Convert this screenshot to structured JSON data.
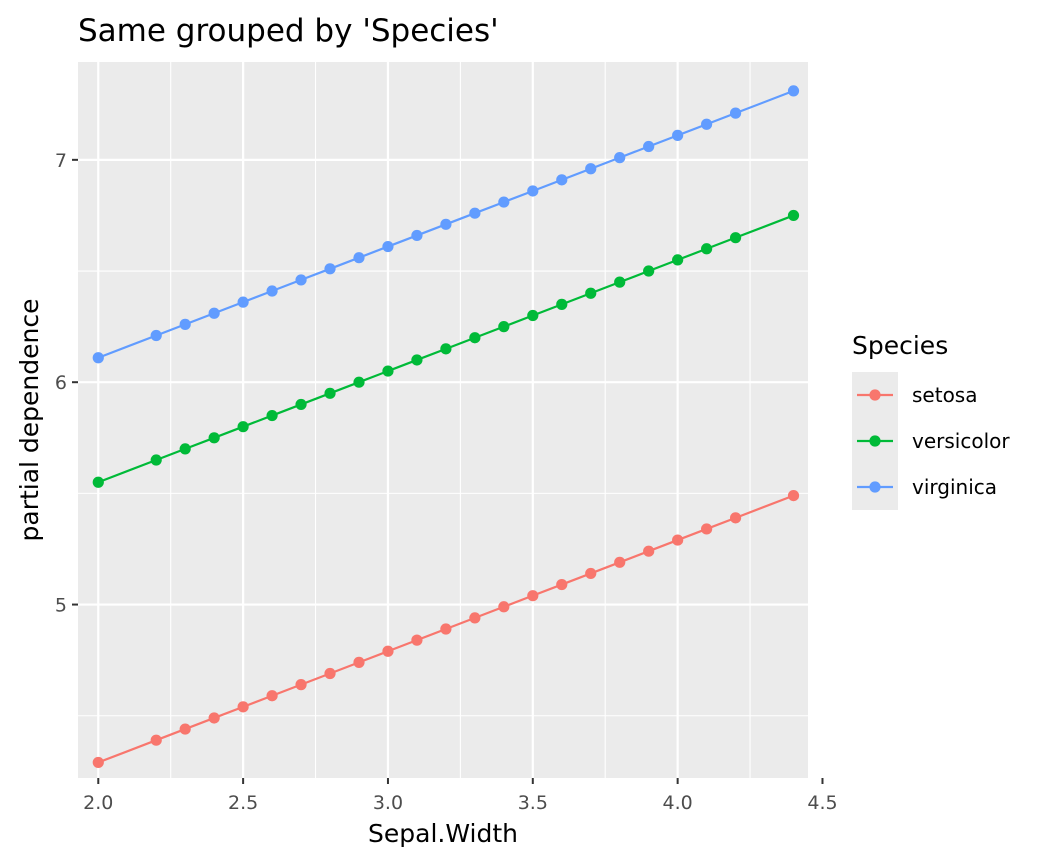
{
  "chart_data": {
    "type": "line",
    "title": "Same grouped by 'Species'",
    "xlabel": "Sepal.Width",
    "ylabel": "partial dependence",
    "xlim": [
      1.93,
      4.45
    ],
    "ylim": [
      4.22,
      7.44
    ],
    "x_ticks": [
      2.0,
      2.5,
      3.0,
      3.5,
      4.0,
      4.5
    ],
    "x_tick_labels": [
      "2.0",
      "2.5",
      "3.0",
      "3.5",
      "4.0",
      "4.5"
    ],
    "y_ticks": [
      5,
      6,
      7
    ],
    "y_tick_labels": [
      "5",
      "6",
      "7"
    ],
    "grid": true,
    "legend": {
      "title": "Species",
      "position": "right"
    },
    "x": [
      2.0,
      2.2,
      2.3,
      2.4,
      2.5,
      2.6,
      2.7,
      2.8,
      2.9,
      3.0,
      3.1,
      3.2,
      3.3,
      3.4,
      3.5,
      3.6,
      3.7,
      3.8,
      3.9,
      4.0,
      4.1,
      4.2,
      4.4
    ],
    "series": [
      {
        "name": "setosa",
        "color": "#F8766D",
        "values": [
          4.29,
          4.39,
          4.44,
          4.49,
          4.54,
          4.59,
          4.64,
          4.69,
          4.74,
          4.79,
          4.84,
          4.89,
          4.94,
          4.99,
          5.04,
          5.09,
          5.14,
          5.19,
          5.24,
          5.29,
          5.34,
          5.39,
          5.49
        ]
      },
      {
        "name": "versicolor",
        "color": "#00BA38",
        "values": [
          5.55,
          5.65,
          5.7,
          5.75,
          5.8,
          5.85,
          5.9,
          5.95,
          6.0,
          6.05,
          6.1,
          6.15,
          6.2,
          6.25,
          6.3,
          6.35,
          6.4,
          6.45,
          6.5,
          6.55,
          6.6,
          6.65,
          6.75
        ]
      },
      {
        "name": "virginica",
        "color": "#619CFF",
        "values": [
          6.11,
          6.21,
          6.26,
          6.31,
          6.36,
          6.41,
          6.46,
          6.51,
          6.56,
          6.61,
          6.66,
          6.71,
          6.76,
          6.81,
          6.86,
          6.91,
          6.96,
          7.01,
          7.06,
          7.11,
          7.16,
          7.21,
          7.31
        ]
      }
    ]
  }
}
